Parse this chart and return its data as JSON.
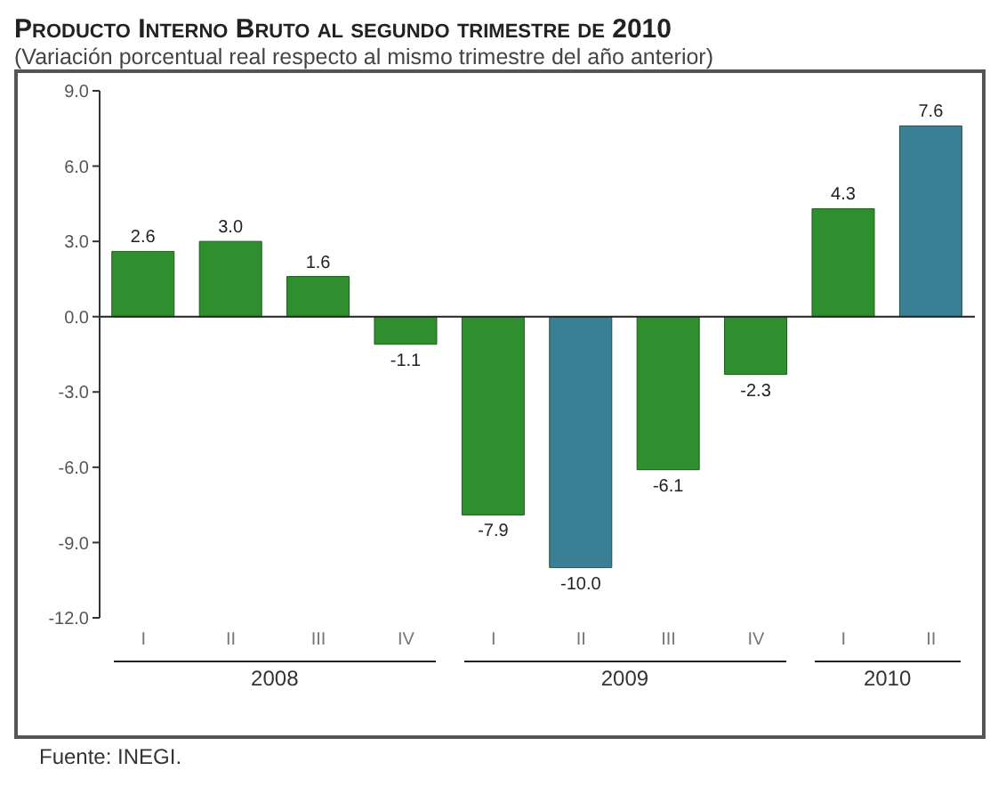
{
  "chart_data": {
    "type": "bar",
    "title": "Producto Interno Bruto al segundo trimestre de 2010",
    "subtitle": "(Variación porcentual real respecto al mismo trimestre del año anterior)",
    "categories": [
      "I",
      "II",
      "III",
      "IV",
      "I",
      "II",
      "III",
      "IV",
      "I",
      "II"
    ],
    "values": [
      2.6,
      3.0,
      1.6,
      -1.1,
      -7.9,
      -10.0,
      -6.1,
      -2.3,
      4.3,
      7.6
    ],
    "colors": [
      "#2f8f2f",
      "#2f8f2f",
      "#2f8f2f",
      "#2f8f2f",
      "#2f8f2f",
      "#3b7f95",
      "#2f8f2f",
      "#2f8f2f",
      "#2f8f2f",
      "#3b7f95"
    ],
    "value_labels": [
      "2.6",
      "3.0",
      "1.6",
      "-1.1",
      "-7.9",
      "-10.0",
      "-6.1",
      "-2.3",
      "4.3",
      "7.6"
    ],
    "ylim": [
      -12,
      9
    ],
    "yticks": [
      {
        "value": -12,
        "label": "-12.0"
      },
      {
        "value": -9,
        "label": "-9.0"
      },
      {
        "value": -6,
        "label": "-6.0"
      },
      {
        "value": -3,
        "label": "-3.0"
      },
      {
        "value": 0,
        "label": "0.0"
      },
      {
        "value": 3,
        "label": "3.0"
      },
      {
        "value": 6,
        "label": "6.0"
      },
      {
        "value": 9,
        "label": "9.0"
      }
    ],
    "annotations": [
      "2008",
      "2009",
      "2010",
      "Fuente: INEGI."
    ]
  }
}
